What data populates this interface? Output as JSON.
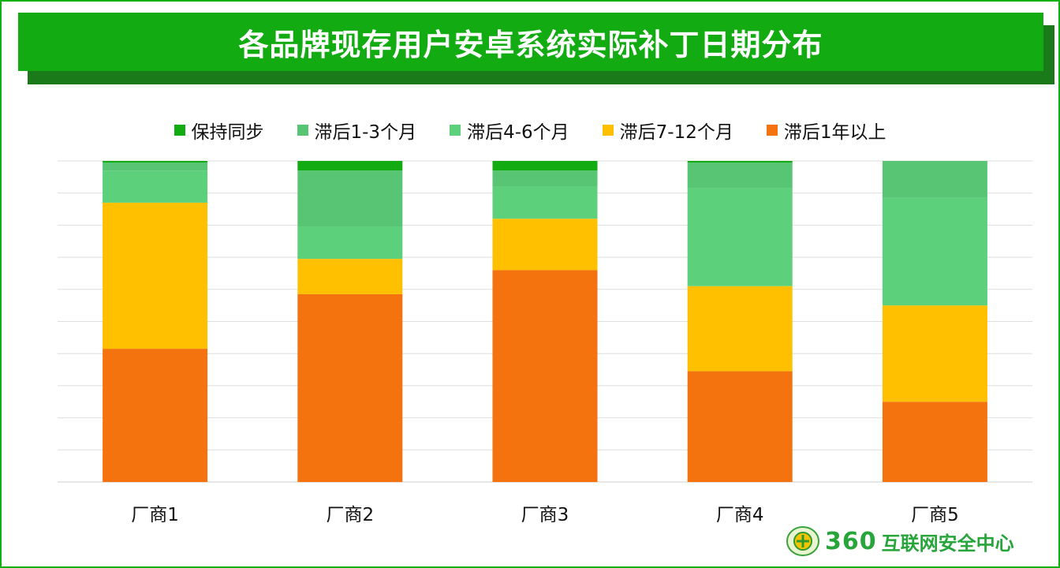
{
  "header": {
    "title": "各品牌现存用户安卓系统实际补丁日期分布"
  },
  "logo": {
    "number": "360",
    "text": "互联网安全中心",
    "icon": "360-emblem-icon"
  },
  "chart_data": {
    "type": "bar",
    "stacked": true,
    "percent_stacked": true,
    "grid": true,
    "legend_position": "top",
    "categories": [
      "厂商1",
      "厂商2",
      "厂商3",
      "厂商4",
      "厂商5"
    ],
    "ylim": [
      0,
      100
    ],
    "series": [
      {
        "name": "滞后1年以上",
        "color": "#f4730f",
        "values": [
          41.5,
          58.5,
          66,
          34.5,
          25
        ]
      },
      {
        "name": "滞后7-12个月",
        "color": "#ffc000",
        "values": [
          45.5,
          11,
          16,
          26.5,
          30
        ]
      },
      {
        "name": "滞后4-6个月",
        "color": "#5cd07a",
        "values": [
          10,
          10,
          10,
          30.5,
          33.5
        ]
      },
      {
        "name": "滞后1-3个月",
        "color": "#57c574",
        "values": [
          2.5,
          17.5,
          5,
          8,
          11.5
        ]
      },
      {
        "name": "保持同步",
        "color": "#12ac12",
        "values": [
          0.5,
          3,
          3,
          0.5,
          0
        ]
      }
    ],
    "legend_order": [
      "保持同步",
      "滞后1-3个月",
      "滞后4-6个月",
      "滞后7-12个月",
      "滞后1年以上"
    ]
  }
}
